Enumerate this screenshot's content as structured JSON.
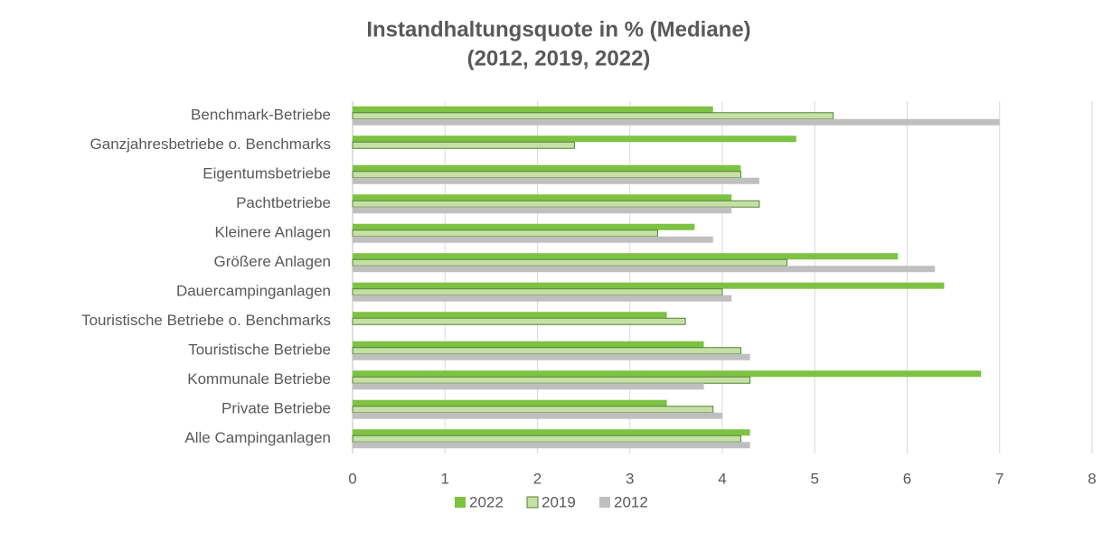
{
  "chart_data": {
    "type": "hbar",
    "title": "Instandhaltungsquote in % (Mediane)",
    "subtitle": "(2012, 2019, 2022)",
    "categories": [
      "Benchmark-Betriebe",
      "Ganzjahresbetriebe o. Benchmarks",
      "Eigentumsbetriebe",
      "Pachtbetriebe",
      "Kleinere Anlagen",
      "Größere Anlagen",
      "Dauercampinganlagen",
      "Touristische Betriebe o. Benchmarks",
      "Touristische Betriebe",
      "Kommunale Betriebe",
      "Private Betriebe",
      "Alle Campinganlagen"
    ],
    "series": [
      {
        "name": "2022",
        "color": "#7dc242",
        "values": [
          3.9,
          4.8,
          4.2,
          4.1,
          3.7,
          5.9,
          6.4,
          3.4,
          3.8,
          6.8,
          3.4,
          4.3
        ]
      },
      {
        "name": "2019",
        "color": "#c5e0a5",
        "values": [
          5.2,
          2.4,
          4.2,
          4.4,
          3.3,
          4.7,
          4.0,
          3.6,
          4.2,
          4.3,
          3.9,
          4.2
        ]
      },
      {
        "name": "2012",
        "color": "#bfbfbf",
        "values": [
          7.0,
          null,
          4.4,
          4.1,
          3.9,
          6.3,
          4.1,
          null,
          4.3,
          3.8,
          4.0,
          4.3
        ]
      }
    ],
    "xlim": [
      0,
      8
    ],
    "xticks": [
      0,
      1,
      2,
      3,
      4,
      5,
      6,
      7,
      8
    ],
    "grid": true,
    "legend": "bottom"
  }
}
